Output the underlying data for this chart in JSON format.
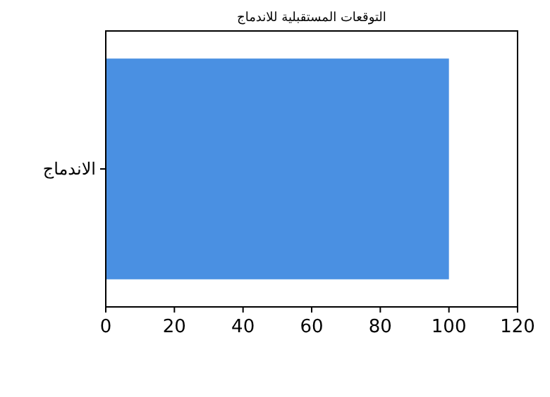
{
  "chart_data": {
    "type": "bar",
    "orientation": "horizontal",
    "title": "التوقعات المستقبلية للاندماج",
    "categories": [
      "الاندماج"
    ],
    "values": [
      100
    ],
    "color": "#4a90e2",
    "xlim": [
      0,
      120
    ],
    "xticks": [
      0,
      20,
      40,
      60,
      80,
      100,
      120
    ]
  }
}
